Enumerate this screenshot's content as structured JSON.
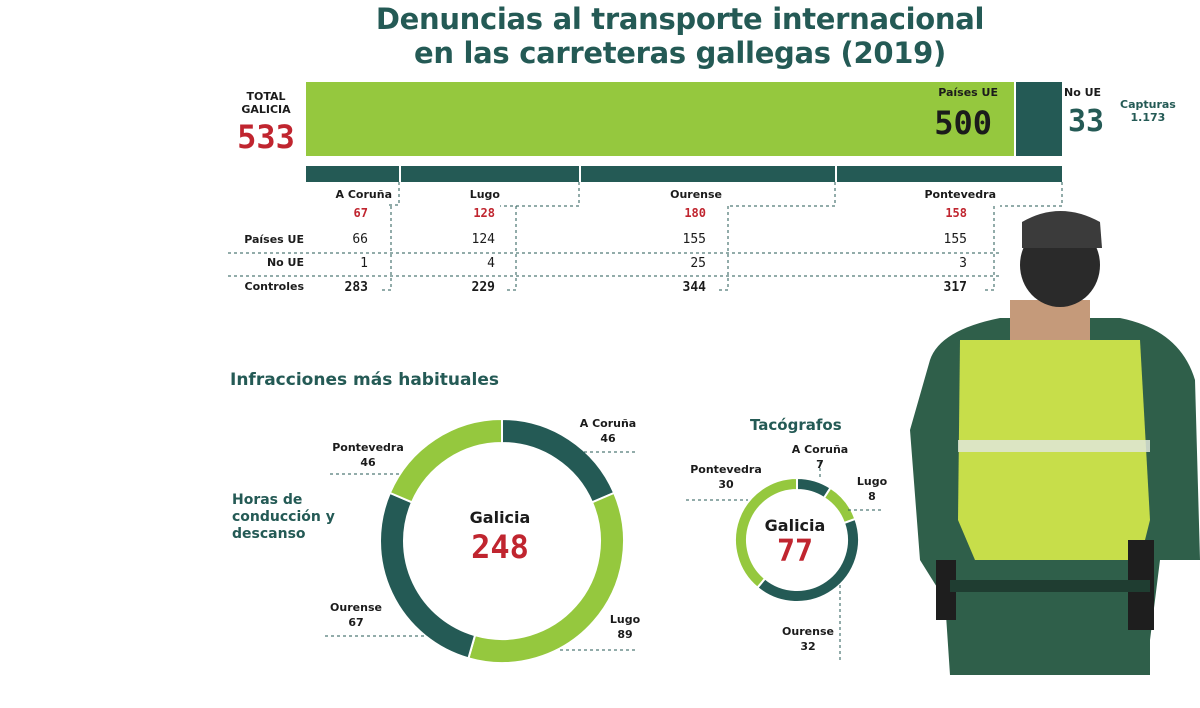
{
  "title": {
    "line1": "Denuncias al transporte internacional",
    "line2": "en las carreteras gallegas (2019)"
  },
  "colors": {
    "ue_green": "#95c83e",
    "noue_teal": "#245a55",
    "highlight_red": "#c0252f"
  },
  "total": {
    "label_line1": "TOTAL",
    "label_line2": "GALICIA",
    "value": "533"
  },
  "ue_bar": {
    "label": "Países UE",
    "value": "500"
  },
  "noue_bar": {
    "label": "No UE",
    "value": "33"
  },
  "capture": {
    "label": "Capturas",
    "value": "1.173"
  },
  "row_labels": {
    "ue": "Países UE",
    "noue": "No UE",
    "controles": "Controles"
  },
  "chart_data": [
    {
      "type": "bar",
      "title": "Denuncias al transporte internacional en las carreteras gallegas (2019)",
      "stacked": true,
      "categories": [
        "Total Galicia"
      ],
      "series": [
        {
          "name": "Países UE",
          "values": [
            500
          ]
        },
        {
          "name": "No UE",
          "values": [
            33
          ]
        }
      ],
      "total": 533
    },
    {
      "type": "table",
      "columns": [
        "A Coruña",
        "Lugo",
        "Ourense",
        "Pontevedra"
      ],
      "totals": [
        "67",
        "128",
        "180",
        "158"
      ],
      "rows": [
        {
          "label": "Países UE",
          "values": [
            "66",
            "124",
            "155",
            "155"
          ]
        },
        {
          "label": "No UE",
          "values": [
            "1",
            "4",
            "25",
            "3"
          ]
        },
        {
          "label": "Controles",
          "values": [
            "283",
            "229",
            "344",
            "317"
          ]
        }
      ]
    },
    {
      "type": "pie",
      "title": "Infracciones más habituales",
      "subtitle": "Horas de conducción y descanso",
      "center_label": "Galicia",
      "center_value": "248",
      "slices": [
        {
          "name": "A Coruña",
          "value": 46,
          "color": "#245a55"
        },
        {
          "name": "Lugo",
          "value": 89,
          "color": "#95c83e"
        },
        {
          "name": "Ourense",
          "value": 67,
          "color": "#245a55"
        },
        {
          "name": "Pontevedra",
          "value": 46,
          "color": "#95c83e"
        }
      ]
    },
    {
      "type": "pie",
      "title": "Tacógrafos",
      "center_label": "Galicia",
      "center_value": "77",
      "slices": [
        {
          "name": "A Coruña",
          "value": 7,
          "color": "#245a55"
        },
        {
          "name": "Lugo",
          "value": 8,
          "color": "#95c83e"
        },
        {
          "name": "Ourense",
          "value": 32,
          "color": "#245a55"
        },
        {
          "name": "Pontevedra",
          "value": 30,
          "color": "#95c83e"
        }
      ]
    }
  ]
}
